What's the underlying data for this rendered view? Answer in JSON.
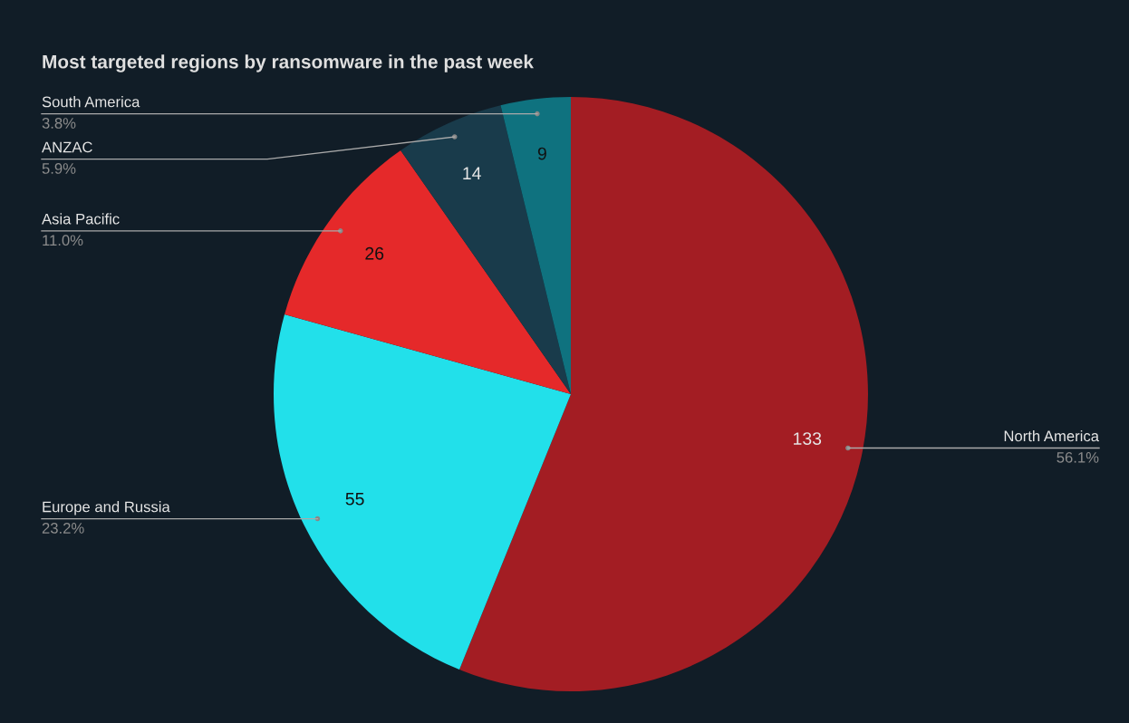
{
  "chart_data": {
    "type": "pie",
    "title": "Most targeted regions by ransomware in the past week",
    "categories": [
      "North America",
      "Europe and Russia",
      "Asia Pacific",
      "ANZAC",
      "South America"
    ],
    "values": [
      133,
      55,
      26,
      14,
      9
    ],
    "colors": [
      "#a31d23",
      "#22e0ea",
      "#e5292a",
      "#193b4b",
      "#0f727f"
    ],
    "data_labels": true,
    "annotations": [
      {
        "text": "56.1%",
        "x": "North America"
      },
      {
        "text": "23.2%",
        "x": "Europe and Russia"
      },
      {
        "text": "11.0%",
        "x": "Asia Pacific"
      },
      {
        "text": "5.9%",
        "x": "ANZAC"
      },
      {
        "text": "3.8%",
        "x": "South America"
      }
    ]
  }
}
